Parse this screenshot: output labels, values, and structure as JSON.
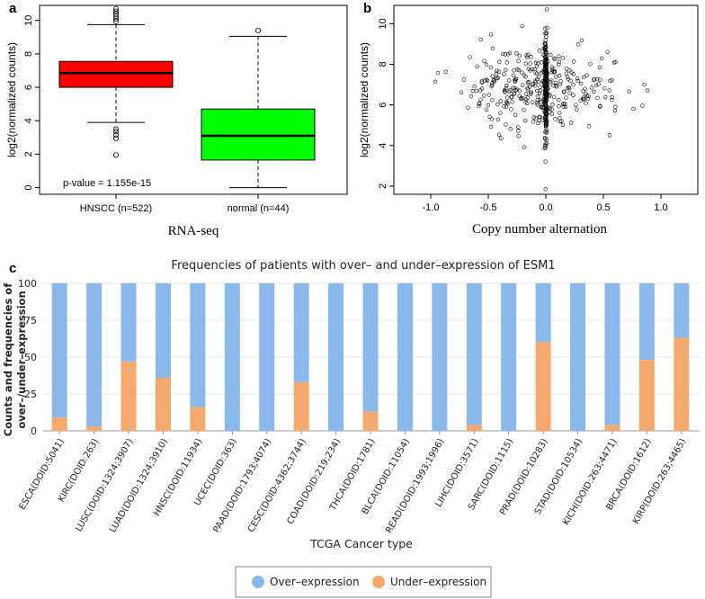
{
  "panels": {
    "a": "a",
    "b": "b",
    "c": "c"
  },
  "chart_data": [
    {
      "type": "box",
      "id": "a",
      "xlabel": "RNA-seq",
      "ylabel": "log2(normalized counts)",
      "ylim": [
        -0.4,
        10.9
      ],
      "yticks": [
        0,
        2,
        4,
        6,
        8,
        10
      ],
      "annotation": "p-value = 1.155e-15",
      "groups": [
        {
          "name": "HNSCC (n=522)",
          "color": "#ff0000",
          "whisker_low": 3.9,
          "q1": 6.0,
          "median": 6.85,
          "q3": 7.55,
          "whisker_high": 9.75,
          "outliers": [
            1.95,
            2.95,
            3.15,
            3.35,
            3.5,
            9.95,
            10.1,
            10.25,
            10.4,
            10.55,
            10.7
          ]
        },
        {
          "name": "normal (n=44)",
          "color": "#00ff00",
          "whisker_low": 0.0,
          "q1": 1.65,
          "median": 3.1,
          "q3": 4.7,
          "whisker_high": 9.05,
          "outliers": [
            9.4
          ]
        }
      ]
    },
    {
      "type": "scatter",
      "id": "b",
      "xlabel": "Copy number alternation",
      "ylabel": "log2(normalized counts)",
      "xlim": [
        -1.32,
        1.32
      ],
      "ylim": [
        1.6,
        10.9
      ],
      "xticks": [
        -1.0,
        -0.5,
        0.0,
        0.5,
        1.0
      ],
      "xtick_labels": [
        "-1.0",
        "-0.5",
        "0.0",
        "0.5",
        "1.0"
      ],
      "yticks": [
        2,
        4,
        6,
        8,
        10
      ],
      "seed": 7,
      "n_points": 520,
      "center_x": 0.0,
      "center_y": 6.8
    },
    {
      "type": "bar",
      "id": "c",
      "stacked": true,
      "title": "Frequencies of patients with over– and under–expression of ESM1",
      "xlabel": "TCGA Cancer type",
      "ylabel_lines": [
        "Counts and frequencies of",
        "over–/under–expression"
      ],
      "ylim": [
        0,
        100
      ],
      "yticks": [
        0,
        25,
        50,
        75,
        100
      ],
      "categories": [
        "ESCA(DOID:5041)",
        "KIRC(DOID:263)",
        "LUSC(DOID:1324;3907)",
        "LUAD(DOID:1324;3910)",
        "HNSC(DOID:11934)",
        "UCEC(DOID:363)",
        "PAAD(DOID:1793;4074)",
        "CESC(DOID:4362;3744)",
        "COAD(DOID:219;234)",
        "THCA(DOID:1781)",
        "BLCA(DOID:11054)",
        "READ(DOID:1993;1996)",
        "LIHC(DOID:3571)",
        "SARC(DOID:1115)",
        "PRAD(DOID:10283)",
        "STAD(DOID:10534)",
        "KICH(DOID:263;4471)",
        "BRCA(DOID:1612)",
        "KIRP(DOID:263;4465)"
      ],
      "series": [
        {
          "name": "Over–expression",
          "color": "#8ab8ea",
          "values": [
            91,
            97,
            53,
            64,
            84,
            100,
            100,
            67,
            100,
            87,
            100,
            100,
            96,
            100,
            40,
            100,
            96,
            52,
            37
          ]
        },
        {
          "name": "Under–expression",
          "color": "#f5a96c",
          "values": [
            9,
            3,
            47,
            36,
            16,
            0,
            0,
            33,
            0,
            13,
            0,
            0,
            4,
            0,
            60,
            0,
            4,
            48,
            63
          ]
        }
      ],
      "legend_position": "bottom-center"
    }
  ]
}
